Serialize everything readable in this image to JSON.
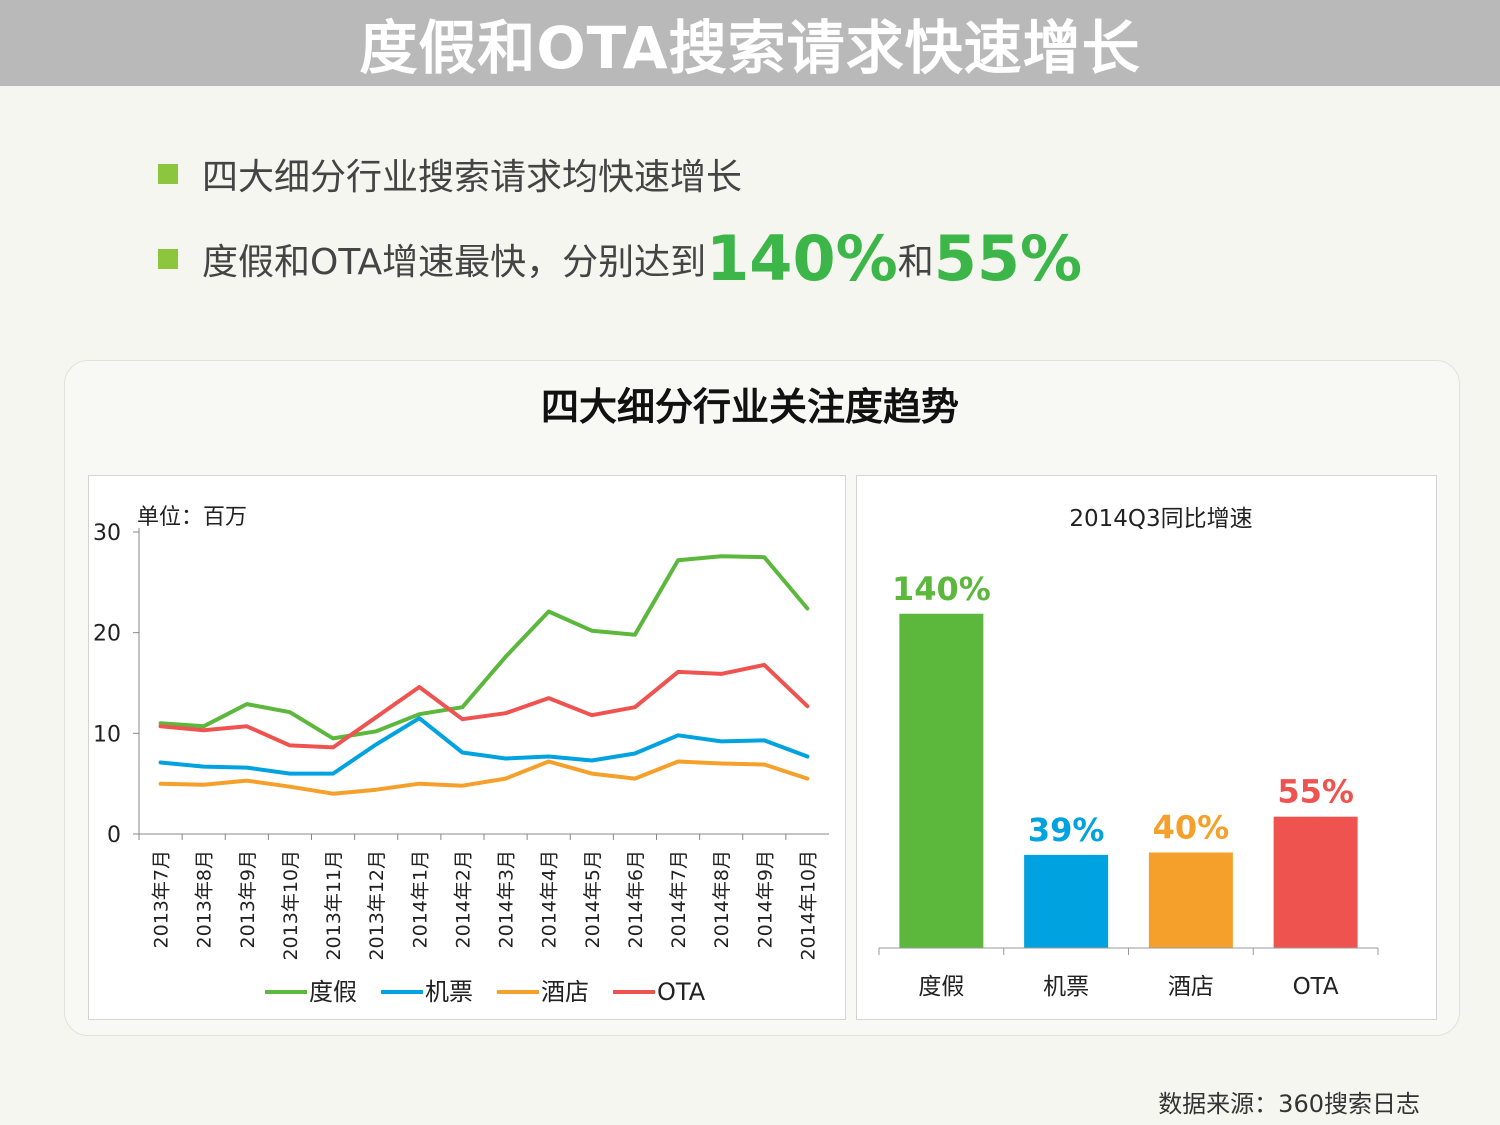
{
  "title": "度假和OTA搜索请求快速增长",
  "bullets": {
    "b1": "四大细分行业搜索请求均快速增长",
    "b2_prefix": "度假和OTA增速最快，分别达到",
    "b2_v1": "140%",
    "b2_mid": "和",
    "b2_v2": "55%"
  },
  "panel_title": "四大细分行业关注度趋势",
  "source": "数据来源：360搜索日志",
  "colors": {
    "vacation": "#5cb83c",
    "flight": "#00a3e0",
    "hotel": "#f5a02a",
    "ota": "#ef5350",
    "accent_green": "#3cb649",
    "bullet": "#8cc63f"
  },
  "chart_data": [
    {
      "type": "line",
      "unit_label": "单位：百万",
      "ylim": [
        0,
        30
      ],
      "yticks": [
        0,
        10,
        20,
        30
      ],
      "categories": [
        "2013年7月",
        "2013年8月",
        "2013年9月",
        "2013年10月",
        "2013年11月",
        "2013年12月",
        "2014年1月",
        "2014年2月",
        "2014年3月",
        "2014年4月",
        "2014年5月",
        "2014年6月",
        "2014年7月",
        "2014年8月",
        "2014年9月",
        "2014年10月"
      ],
      "legend_position": "bottom",
      "series": [
        {
          "name": "度假",
          "color": "#5cb83c",
          "values": [
            11.0,
            10.7,
            12.9,
            12.1,
            9.5,
            10.2,
            11.9,
            12.6,
            17.6,
            22.1,
            20.2,
            19.8,
            27.2,
            27.6,
            27.5,
            22.4
          ]
        },
        {
          "name": "机票",
          "color": "#00a3e0",
          "values": [
            7.1,
            6.7,
            6.6,
            6.0,
            6.0,
            8.9,
            11.5,
            8.1,
            7.5,
            7.7,
            7.3,
            8.0,
            9.8,
            9.2,
            9.3,
            7.7
          ]
        },
        {
          "name": "酒店",
          "color": "#f5a02a",
          "values": [
            5.0,
            4.9,
            5.3,
            4.7,
            4.0,
            4.4,
            5.0,
            4.8,
            5.5,
            7.2,
            6.0,
            5.5,
            7.2,
            7.0,
            6.9,
            5.5
          ]
        },
        {
          "name": "OTA",
          "color": "#ef5350",
          "values": [
            10.7,
            10.3,
            10.7,
            8.8,
            8.6,
            11.6,
            14.6,
            11.4,
            12.0,
            13.5,
            11.8,
            12.6,
            16.1,
            15.9,
            16.8,
            12.7
          ]
        }
      ]
    },
    {
      "type": "bar",
      "title": "2014Q3同比增速",
      "categories": [
        "度假",
        "机票",
        "酒店",
        "OTA"
      ],
      "values": [
        140,
        39,
        40,
        55
      ],
      "value_labels": [
        "140%",
        "39%",
        "40%",
        "55%"
      ],
      "colors": [
        "#5cb83c",
        "#00a3e0",
        "#f5a02a",
        "#ef5350"
      ],
      "ylim": [
        0,
        160
      ]
    }
  ]
}
